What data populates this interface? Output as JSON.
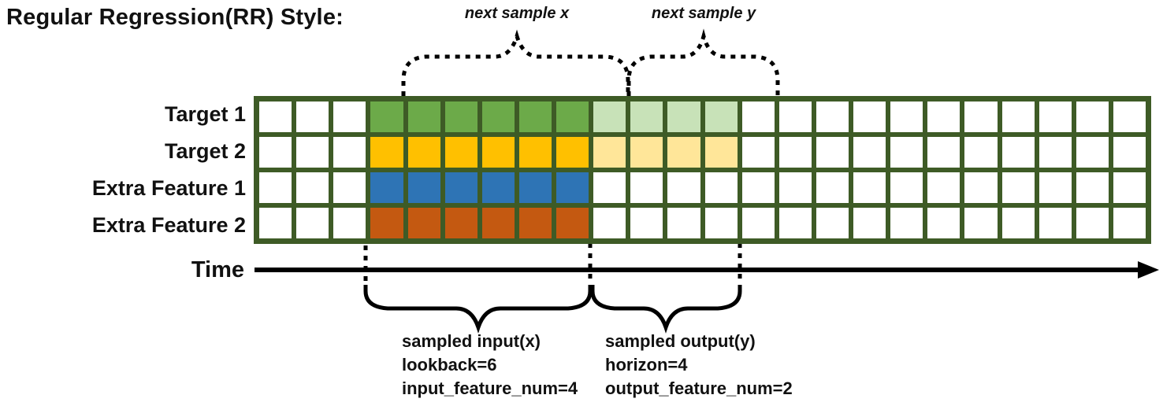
{
  "title": "Regular Regression(RR) Style:",
  "time_label": "Time",
  "annotations": {
    "next_sample_x": "next sample x",
    "next_sample_y": "next sample y",
    "input_lines": [
      "sampled input(x)",
      "lookback=6",
      "input_feature_num=4"
    ],
    "output_lines": [
      "sampled output(y)",
      "horizon=4",
      "output_feature_num=2"
    ]
  },
  "colors": {
    "grid_border": "#3e5b26",
    "cell_empty": "#ffffff",
    "green": "#6caa49",
    "green_light": "#c8e2b8",
    "gold": "#ffc000",
    "gold_light": "#ffe699",
    "blue": "#2e74b5",
    "orange": "#c45911",
    "line_black": "#000000"
  },
  "grid": {
    "layout": {
      "total_columns": 24,
      "lead_empty_columns": 3,
      "input_columns": 6,
      "output_columns": 4
    },
    "rows": [
      {
        "label": "Target 1",
        "input_color": "green",
        "output_color": "green_light"
      },
      {
        "label": "Target 2",
        "input_color": "gold",
        "output_color": "gold_light"
      },
      {
        "label": "Extra Feature 1",
        "input_color": "blue",
        "output_color": "cell_empty"
      },
      {
        "label": "Extra Feature 2",
        "input_color": "orange",
        "output_color": "cell_empty"
      }
    ]
  }
}
